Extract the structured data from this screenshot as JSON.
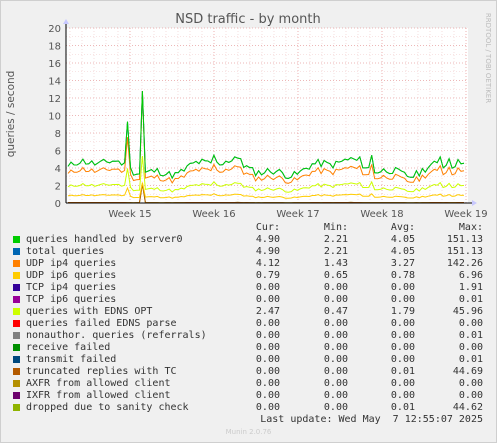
{
  "chart_data": {
    "type": "line",
    "title": "NSD traffic - by month",
    "ylabel": "queries / second",
    "ylim": [
      0,
      20
    ],
    "yticks": [
      "0",
      "2",
      "4",
      "6",
      "8",
      "10",
      "12",
      "14",
      "16",
      "18",
      "20"
    ],
    "xticks": [
      "Week 15",
      "Week 16",
      "Week 17",
      "Week 18",
      "Week 19"
    ],
    "watermark": "RRDTOOL / TOBI OETIKER",
    "series": [
      {
        "name": "queries handled by server0",
        "color": "#00cc00",
        "cur": "4.90",
        "min": "2.21",
        "avg": "4.05",
        "max": "151.13"
      },
      {
        "name": "total queries",
        "color": "#0066b3",
        "cur": "4.90",
        "min": "2.21",
        "avg": "4.05",
        "max": "151.13"
      },
      {
        "name": "UDP ip4 queries",
        "color": "#ff8000",
        "cur": "4.12",
        "min": "1.43",
        "avg": "3.27",
        "max": "142.26"
      },
      {
        "name": "UDP ip6 queries",
        "color": "#ffcc00",
        "cur": "0.79",
        "min": "0.65",
        "avg": "0.78",
        "max": "6.96"
      },
      {
        "name": "TCP ip4 queries",
        "color": "#330099",
        "cur": "0.00",
        "min": "0.00",
        "avg": "0.00",
        "max": "1.91"
      },
      {
        "name": "TCP ip6 queries",
        "color": "#990099",
        "cur": "0.00",
        "min": "0.00",
        "avg": "0.00",
        "max": "0.01"
      },
      {
        "name": "queries with EDNS OPT",
        "color": "#ccff00",
        "cur": "2.47",
        "min": "0.47",
        "avg": "1.79",
        "max": "45.96"
      },
      {
        "name": "queries failed EDNS parse",
        "color": "#ff0000",
        "cur": "0.00",
        "min": "0.00",
        "avg": "0.00",
        "max": "0.00"
      },
      {
        "name": "nonauthor. queries (referrals)",
        "color": "#808080",
        "cur": "0.00",
        "min": "0.00",
        "avg": "0.00",
        "max": "0.01"
      },
      {
        "name": "receive failed",
        "color": "#008f00",
        "cur": "0.00",
        "min": "0.00",
        "avg": "0.00",
        "max": "0.00"
      },
      {
        "name": "transmit failed",
        "color": "#00487d",
        "cur": "0.00",
        "min": "0.00",
        "avg": "0.00",
        "max": "0.01"
      },
      {
        "name": "truncated replies with TC",
        "color": "#b35a00",
        "cur": "0.00",
        "min": "0.00",
        "avg": "0.01",
        "max": "44.69"
      },
      {
        "name": "AXFR from allowed client",
        "color": "#b38f00",
        "cur": "0.00",
        "min": "0.00",
        "avg": "0.00",
        "max": "0.00"
      },
      {
        "name": "IXFR from allowed client",
        "color": "#6b006b",
        "cur": "0.00",
        "min": "0.00",
        "avg": "0.00",
        "max": "0.00"
      },
      {
        "name": "dropped due to sanity check",
        "color": "#8fb300",
        "cur": "0.00",
        "min": "0.00",
        "avg": "0.01",
        "max": "44.62"
      }
    ]
  },
  "legend": {
    "cur_label": "Cur:",
    "min_label": "Min:",
    "avg_label": "Avg:",
    "max_label": "Max:",
    "last_update": "Last update: Wed May  7 12:55:07 2025"
  },
  "footer": {
    "version": "Munin 2.0.76"
  }
}
